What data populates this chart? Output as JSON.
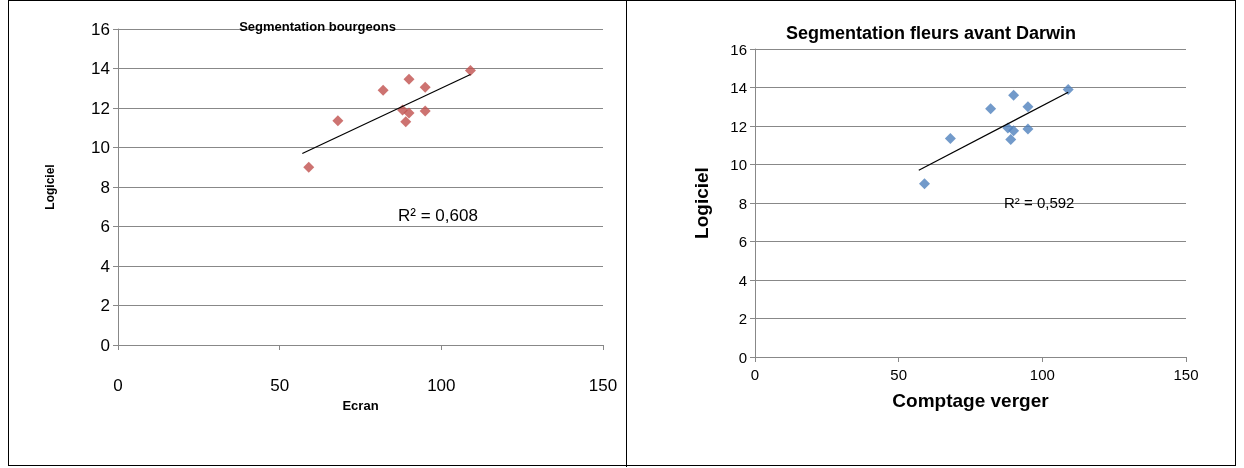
{
  "chart_data": [
    {
      "type": "scatter",
      "title": "Segmentation bourgeons",
      "xlabel": "Ecran",
      "ylabel": "Logiciel",
      "xlim": [
        0,
        150
      ],
      "xticks": [
        0,
        50,
        100,
        150
      ],
      "ylim": [
        0,
        16
      ],
      "yticks": [
        0,
        2,
        4,
        6,
        8,
        10,
        12,
        14,
        16
      ],
      "grid": "y",
      "series": [
        {
          "color": "#c0504d",
          "marker": "diamond",
          "x": [
            59,
            68,
            82,
            90,
            95,
            88,
            90,
            89,
            95,
            109
          ],
          "values": [
            9.0,
            11.35,
            12.9,
            13.45,
            13.05,
            11.9,
            11.75,
            11.3,
            11.85,
            13.9
          ]
        },
        {
          "type": "line",
          "color": "#000000",
          "marker": "none",
          "x": [
            57,
            109
          ],
          "values": [
            9.7,
            13.7
          ]
        }
      ],
      "annotations": [
        "R² = 0,608"
      ]
    },
    {
      "type": "scatter",
      "title": "Segmentation fleurs avant Darwin",
      "xlabel": "Comptage verger",
      "ylabel": "Logiciel",
      "xlim": [
        0,
        150
      ],
      "xticks": [
        0,
        50,
        100,
        150
      ],
      "ylim": [
        0,
        16
      ],
      "yticks": [
        0,
        2,
        4,
        6,
        8,
        10,
        12,
        14,
        16
      ],
      "grid": "y",
      "series": [
        {
          "color": "#4f81bd",
          "marker": "diamond",
          "x": [
            59,
            68,
            82,
            90,
            95,
            88,
            90,
            89,
            95,
            109
          ],
          "values": [
            9.0,
            11.35,
            12.9,
            13.6,
            13.0,
            11.9,
            11.75,
            11.3,
            11.85,
            13.9
          ]
        },
        {
          "type": "line",
          "color": "#000000",
          "marker": "none",
          "x": [
            57,
            109
          ],
          "values": [
            9.7,
            13.75
          ]
        }
      ],
      "annotations": [
        "R² = 0,592"
      ]
    }
  ]
}
